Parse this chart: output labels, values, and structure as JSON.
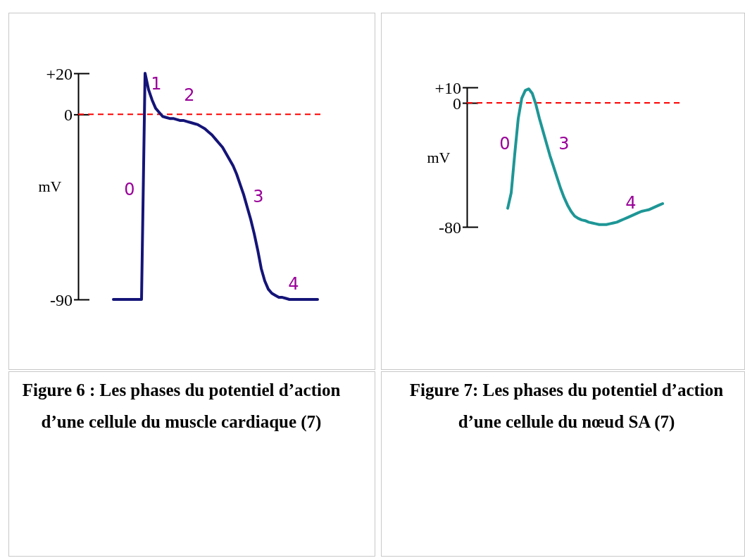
{
  "chart_data": [
    {
      "type": "line",
      "title": "Figure 6 : Les phases du potentiel d’action d’une cellule du muscle cardiaque (7)",
      "ylabel": "mV",
      "tick_labels": "y",
      "marker": "none",
      "line_style": "solid",
      "categories": [
        null,
        null,
        null,
        null,
        null,
        null,
        null,
        null,
        null,
        null,
        null,
        null,
        null,
        null,
        null,
        null,
        null,
        null,
        null,
        null,
        null,
        null,
        null,
        null,
        null,
        null,
        null,
        null,
        null,
        null,
        null,
        null,
        null,
        null,
        null,
        null,
        null,
        null,
        null,
        null,
        null,
        null,
        null,
        null,
        null,
        null,
        null,
        null,
        null,
        null,
        null,
        null,
        null,
        null,
        null,
        null,
        null,
        null,
        null
      ],
      "ylim": [
        -90,
        20
      ],
      "yticks": [
        {
          "value": 20,
          "label": "+20"
        },
        {
          "value": 0,
          "label": "0"
        },
        {
          "value": -90,
          "label": "-90"
        }
      ],
      "series": [
        {
          "color": "#141478",
          "values": [
            -90,
            -90,
            -90,
            -90,
            -90,
            -90,
            -90,
            -90,
            -90,
            20,
            12,
            7,
            3,
            1,
            -1,
            -1.5,
            -2,
            -2,
            -2.5,
            -3,
            -3,
            -3.5,
            -4,
            -4.5,
            -5,
            -6,
            -7,
            -8.5,
            -10,
            -12,
            -14,
            -16,
            -19,
            -22,
            -25,
            -29,
            -34,
            -39,
            -45,
            -51,
            -58,
            -66,
            -75,
            -81,
            -85,
            -87,
            -88,
            -89,
            -89,
            -89.5,
            -90,
            -90,
            -90,
            -90,
            -90,
            -90,
            -90,
            -90,
            -90
          ]
        }
      ],
      "ref_lines": [
        {
          "axis": "y",
          "value": 0,
          "color": "#ff0000",
          "line_style": "dashed"
        }
      ],
      "annotations": [
        "0",
        "1",
        "2",
        "3",
        "4"
      ]
    },
    {
      "type": "line",
      "title": "Figure 7: Les phases du potentiel d’action d’une cellule du nœud SA (7)",
      "ylabel": "mV",
      "tick_labels": "y",
      "marker": "none",
      "line_style": "solid",
      "categories": [
        null,
        null,
        null,
        null,
        null,
        null,
        null,
        null,
        null,
        null,
        null,
        null,
        null,
        null,
        null,
        null,
        null,
        null,
        null,
        null,
        null,
        null,
        null,
        null,
        null,
        null,
        null,
        null,
        null,
        null,
        null,
        null,
        null,
        null,
        null,
        null,
        null,
        null,
        null,
        null,
        null,
        null,
        null,
        null,
        null
      ],
      "ylim": [
        -80,
        10
      ],
      "yticks": [
        {
          "value": 10,
          "label": "+10"
        },
        {
          "value": 0,
          "label": "0"
        },
        {
          "value": -80,
          "label": "-80"
        }
      ],
      "series": [
        {
          "color": "#1e9696",
          "values": [
            -68,
            -58,
            -33,
            -10,
            3,
            8,
            9,
            6,
            -1,
            -10,
            -18,
            -26,
            -34,
            -41,
            -48,
            -55,
            -61,
            -66,
            -70,
            -73,
            -74.5,
            -75.5,
            -76,
            -77,
            -77.5,
            -78,
            -78.5,
            -78.5,
            -78.5,
            -78,
            -77.5,
            -77,
            -76,
            -75,
            -74,
            -73,
            -72,
            -71,
            -70,
            -69.5,
            -69,
            -68,
            -67,
            -66,
            -65
          ]
        }
      ],
      "ref_lines": [
        {
          "axis": "y",
          "value": 0,
          "color": "#ff0000",
          "line_style": "dashed"
        }
      ],
      "annotations": [
        "0",
        "3",
        "4"
      ]
    }
  ]
}
